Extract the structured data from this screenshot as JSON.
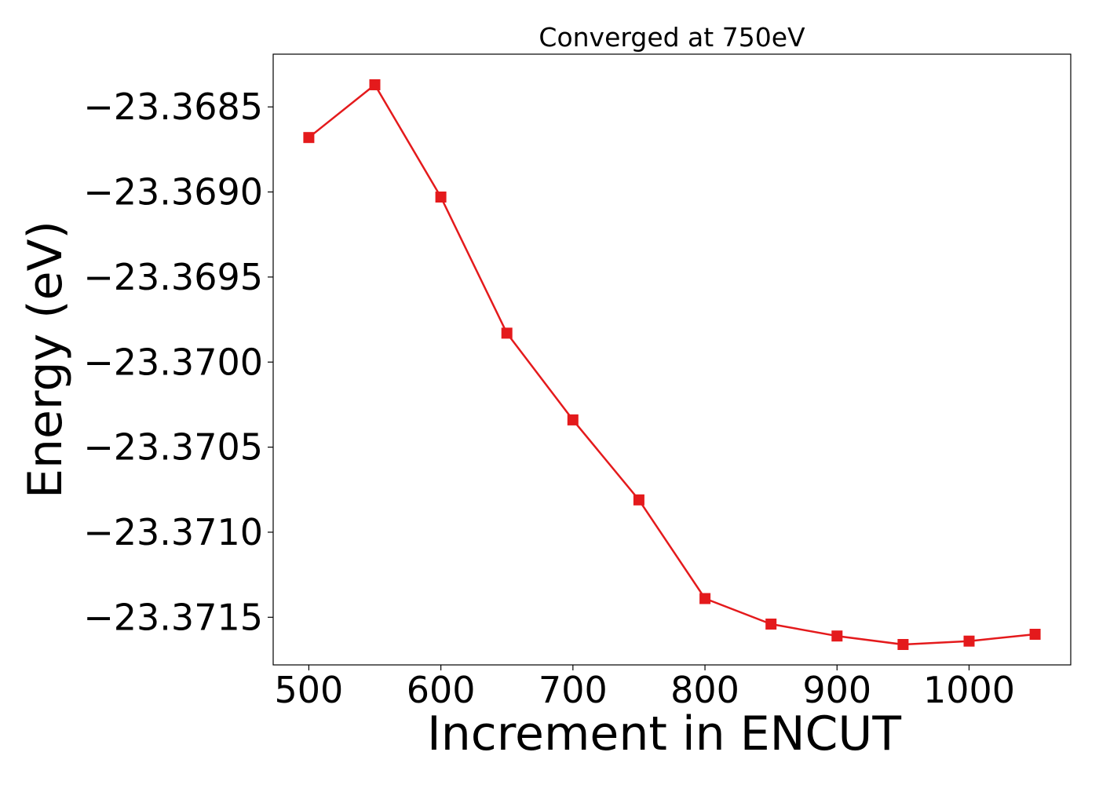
{
  "chart_data": {
    "type": "line",
    "title": "Converged at 750eV",
    "xlabel": "Increment in ENCUT",
    "ylabel": "Energy (eV)",
    "x": [
      500,
      550,
      600,
      650,
      700,
      750,
      800,
      850,
      900,
      950,
      1000,
      1050
    ],
    "series": [
      {
        "values": [
          -23.36868,
          -23.36837,
          -23.36903,
          -23.36983,
          -23.37034,
          -23.37081,
          -23.37139,
          -23.37154,
          -23.37161,
          -23.37166,
          -23.37164,
          -23.3716
        ],
        "color": "#e41a1c",
        "marker": "square"
      }
    ],
    "xticks": [
      500,
      600,
      700,
      800,
      900,
      1000
    ],
    "xtick_labels": [
      "500",
      "600",
      "700",
      "800",
      "900",
      "1000"
    ],
    "yticks": [
      -23.3685,
      -23.369,
      -23.3695,
      -23.37,
      -23.3705,
      -23.371,
      -23.3715
    ],
    "ytick_labels": [
      "−23.3685",
      "−23.3690",
      "−23.3695",
      "−23.3700",
      "−23.3705",
      "−23.3710",
      "−23.3715"
    ],
    "xlim": [
      473,
      1077
    ],
    "ylim": [
      -23.37178,
      -23.36819
    ],
    "grid": false,
    "legend": "none"
  }
}
